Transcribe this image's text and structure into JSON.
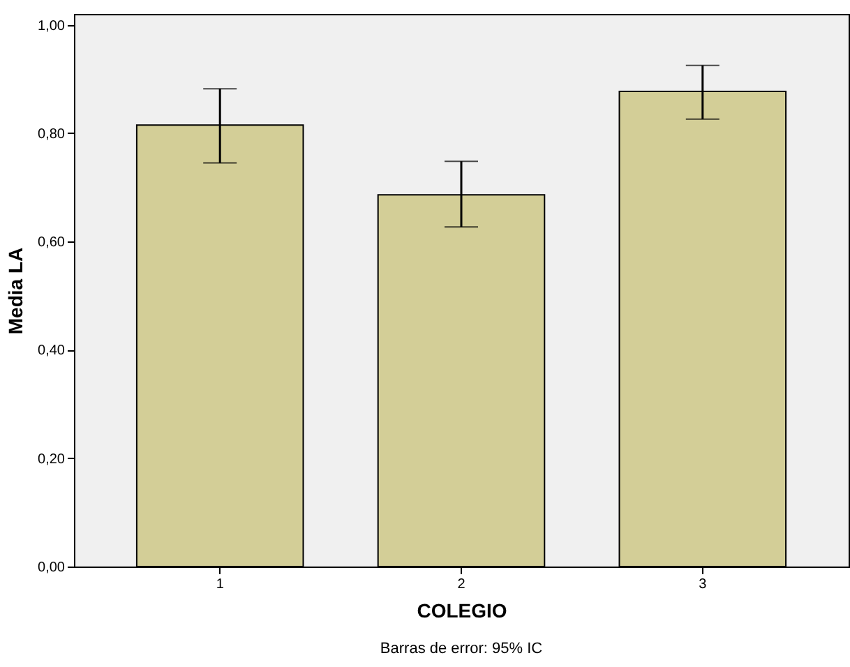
{
  "chart_data": {
    "type": "bar",
    "xlabel": "COLEGIO",
    "ylabel": "Media LA",
    "categories": [
      "1",
      "2",
      "3"
    ],
    "values": [
      0.815,
      0.686,
      0.877
    ],
    "errors": [
      [
        0.745,
        0.882
      ],
      [
        0.627,
        0.748
      ],
      [
        0.826,
        0.925
      ]
    ],
    "color": "#d3ce97",
    "ylim": [
      0,
      1.02
    ],
    "yticks": [
      {
        "value": 0,
        "label": "0,00"
      },
      {
        "value": 0.2,
        "label": "0,20"
      },
      {
        "value": 0.4,
        "label": "0,40"
      },
      {
        "value": 0.6,
        "label": "0,60"
      },
      {
        "value": 0.8,
        "label": "0,80"
      },
      {
        "value": 1,
        "label": "1,00"
      }
    ],
    "grid": false,
    "annotations": [
      "Barras de error: 95% IC"
    ]
  }
}
